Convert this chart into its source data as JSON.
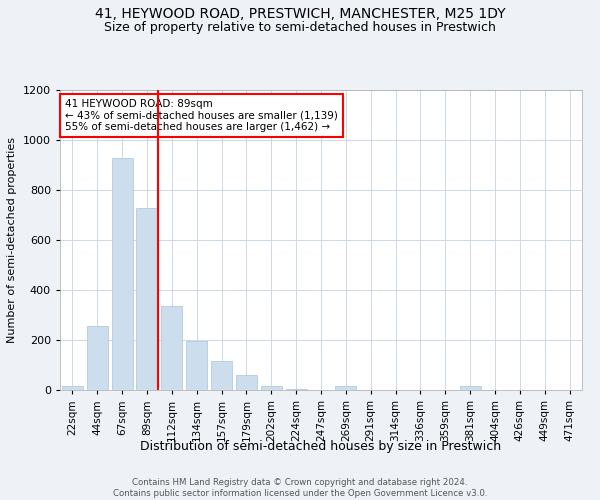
{
  "title": "41, HEYWOOD ROAD, PRESTWICH, MANCHESTER, M25 1DY",
  "subtitle": "Size of property relative to semi-detached houses in Prestwich",
  "xlabel": "Distribution of semi-detached houses by size in Prestwich",
  "ylabel": "Number of semi-detached properties",
  "footnote": "Contains HM Land Registry data © Crown copyright and database right 2024.\nContains public sector information licensed under the Open Government Licence v3.0.",
  "bar_labels": [
    "22sqm",
    "44sqm",
    "67sqm",
    "89sqm",
    "112sqm",
    "134sqm",
    "157sqm",
    "179sqm",
    "202sqm",
    "224sqm",
    "247sqm",
    "269sqm",
    "291sqm",
    "314sqm",
    "336sqm",
    "359sqm",
    "381sqm",
    "404sqm",
    "426sqm",
    "449sqm",
    "471sqm"
  ],
  "bar_values": [
    15,
    255,
    930,
    730,
    335,
    195,
    115,
    60,
    15,
    5,
    2,
    15,
    2,
    2,
    2,
    2,
    15,
    2,
    2,
    2,
    2
  ],
  "bar_color": "#ccdded",
  "bar_edge_color": "#aac4d8",
  "red_line_index": 3,
  "red_line_label": "41 HEYWOOD ROAD: 89sqm",
  "annotation_line1": "← 43% of semi-detached houses are smaller (1,139)",
  "annotation_line2": "55% of semi-detached houses are larger (1,462) →",
  "annotation_box_color": "white",
  "annotation_box_edge": "red",
  "red_line_color": "red",
  "ylim": [
    0,
    1200
  ],
  "yticks": [
    0,
    200,
    400,
    600,
    800,
    1000,
    1200
  ],
  "bg_color": "#eef2f7",
  "plot_bg_color": "white",
  "title_fontsize": 10,
  "subtitle_fontsize": 9
}
